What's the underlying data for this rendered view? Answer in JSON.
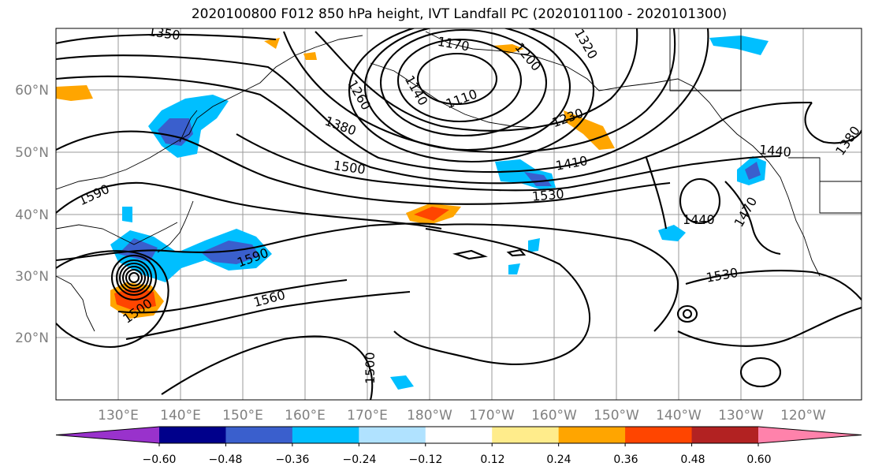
{
  "title": "2020100800 F012 850 hPa height, IVT Landfall PC (2020101100 - 2020101300)",
  "lat_labels": [
    "60°N",
    "50°N",
    "40°N",
    "30°N",
    "20°N"
  ],
  "lon_labels": [
    "130°E",
    "140°E",
    "150°E",
    "160°E",
    "170°E",
    "180°W",
    "170°W",
    "160°W",
    "150°W",
    "140°W",
    "130°W",
    "120°W"
  ],
  "contour_labels": [
    "1350",
    "1170",
    "1320",
    "1110",
    "1140",
    "1200",
    "1260",
    "1230",
    "1380",
    "1500",
    "1410",
    "1440",
    "1590",
    "1530",
    "1470",
    "1440",
    "1380",
    "1590",
    "1500",
    "1560",
    "1530",
    "1500"
  ],
  "colorbar": {
    "colors": [
      "#9932CC",
      "#00008B",
      "#3A5FCD",
      "#00BFFF",
      "#B0E2FF",
      "#FFFFFF",
      "#FFEC8B",
      "#FFA500",
      "#FF4500",
      "#B22222",
      "#FF82AB"
    ],
    "tick_labels": [
      "−0.60",
      "−0.48",
      "−0.36",
      "−0.24",
      "−0.12",
      "0.12",
      "0.24",
      "0.36",
      "0.48",
      "0.60"
    ]
  }
}
